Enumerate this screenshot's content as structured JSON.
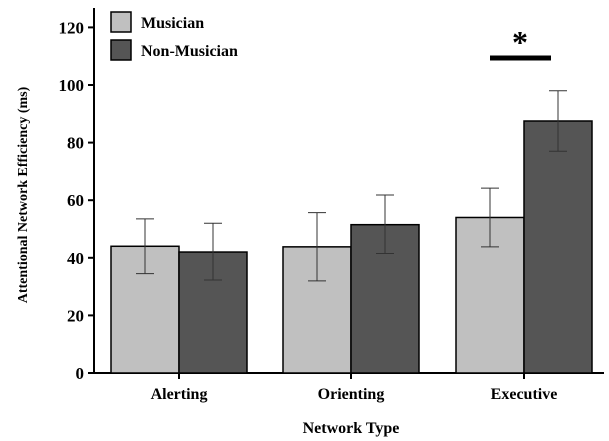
{
  "chart_data": {
    "type": "bar",
    "title": "",
    "xlabel": "Network Type",
    "ylabel": "Attentional Network Efficiency (ms)",
    "categories": [
      "Alerting",
      "Orienting",
      "Executive"
    ],
    "ylim": [
      0,
      125
    ],
    "yticks": [
      0,
      20,
      40,
      60,
      80,
      100,
      120
    ],
    "series": [
      {
        "name": "Musician",
        "color": "#c0c0c0",
        "values": [
          44,
          43.8,
          54
        ],
        "error_low": [
          34.5,
          32,
          43.8
        ],
        "error_high": [
          53.5,
          55.7,
          64.2
        ]
      },
      {
        "name": "Non-Musician",
        "color": "#555555",
        "values": [
          42,
          51.5,
          87.5
        ],
        "error_low": [
          32.3,
          41.5,
          77
        ],
        "error_high": [
          52,
          61.8,
          98
        ]
      }
    ],
    "legend": {
      "placement": "top-left"
    },
    "grid": false,
    "annotations": [
      {
        "category": "Executive",
        "text": "*",
        "meaning": "significance marker over bracket line"
      }
    ]
  }
}
